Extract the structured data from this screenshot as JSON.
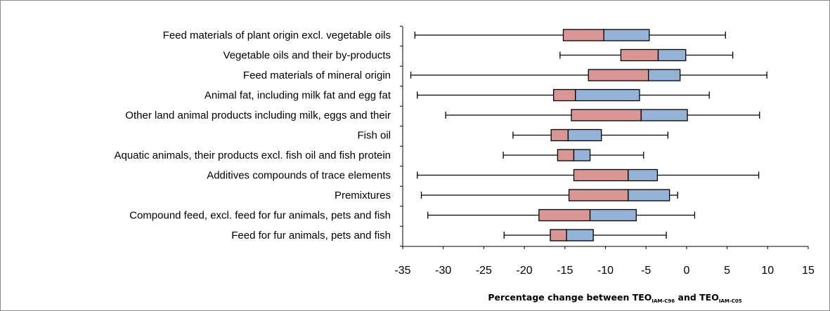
{
  "chart_data": {
    "type": "boxplot",
    "orientation": "horizontal",
    "title": "",
    "xlabel": {
      "main": "Percentage change between TEO",
      "sub1": "IAM-C96",
      "mid": " and TEO",
      "sub2": "IAM-C05"
    },
    "ylabel": "",
    "xlim": [
      -35,
      15
    ],
    "xticks": [
      -35,
      -30,
      -25,
      -20,
      -15,
      -10,
      -5,
      0,
      5,
      10,
      15
    ],
    "grid": false,
    "legend": "none",
    "colors": {
      "lower_box": "#d99694",
      "upper_box": "#95b3d7",
      "stroke": "#000000"
    },
    "categories": [
      "Feed materials of plant origin excl. vegetable oils",
      "Vegetable oils and their by-products",
      "Feed materials of mineral origin",
      "Animal fat, including milk fat and egg fat",
      "Other land animal products including milk, eggs and their",
      "Fish oil",
      "Aquatic animals, their products excl. fish oil and fish protein",
      "Additives compounds of trace elements",
      "Premixtures",
      "Compound feed, excl. feed for fur animals, pets and fish",
      "Feed for fur animals, pets and fish"
    ],
    "boxes": [
      {
        "min": -33.5,
        "q1": -15.2,
        "median": -10.2,
        "q3": -4.6,
        "max": 4.8
      },
      {
        "min": -15.6,
        "q1": -8.1,
        "median": -3.5,
        "q3": -0.1,
        "max": 5.7
      },
      {
        "min": -34.0,
        "q1": -12.1,
        "median": -4.7,
        "q3": -0.8,
        "max": 9.9
      },
      {
        "min": -33.2,
        "q1": -16.4,
        "median": -13.7,
        "q3": -5.8,
        "max": 2.8
      },
      {
        "min": -29.7,
        "q1": -14.2,
        "median": -5.6,
        "q3": 0.1,
        "max": 9.0
      },
      {
        "min": -21.4,
        "q1": -16.7,
        "median": -14.6,
        "q3": -10.5,
        "max": -2.3
      },
      {
        "min": -22.6,
        "q1": -15.9,
        "median": -13.9,
        "q3": -11.9,
        "max": -5.3
      },
      {
        "min": -33.2,
        "q1": -13.9,
        "median": -7.2,
        "q3": -3.6,
        "max": 8.9
      },
      {
        "min": -32.7,
        "q1": -14.5,
        "median": -7.2,
        "q3": -2.1,
        "max": -1.1
      },
      {
        "min": -31.9,
        "q1": -18.2,
        "median": -11.9,
        "q3": -6.2,
        "max": 1.0
      },
      {
        "min": -22.5,
        "q1": -16.8,
        "median": -14.8,
        "q3": -11.5,
        "max": -2.5
      }
    ]
  }
}
